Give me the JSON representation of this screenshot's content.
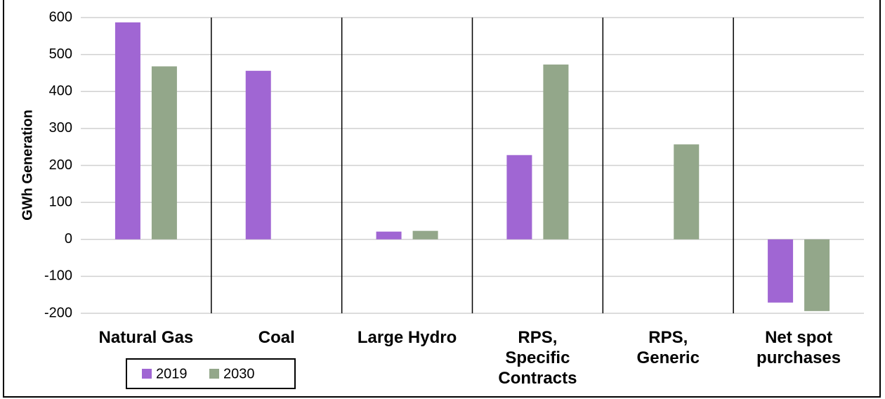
{
  "chart_data": {
    "type": "bar",
    "y_label": "GWh Generation",
    "categories": [
      "Natural Gas",
      "Coal",
      "Large Hydro",
      "RPS,\nSpecific\nContracts",
      "RPS,\nGeneric",
      "Net spot\npurchases"
    ],
    "series": [
      {
        "name": "2019",
        "color": "#a066d3",
        "values": [
          587,
          456,
          21,
          228,
          0,
          -171
        ]
      },
      {
        "name": "2030",
        "color": "#93a78a",
        "values": [
          468,
          0,
          23,
          473,
          257,
          -194
        ]
      }
    ],
    "ylim": [
      -200,
      600
    ],
    "yticks": [
      -200,
      -100,
      0,
      100,
      200,
      300,
      400,
      500,
      600
    ],
    "grid": true,
    "legend": "bottom-left"
  }
}
